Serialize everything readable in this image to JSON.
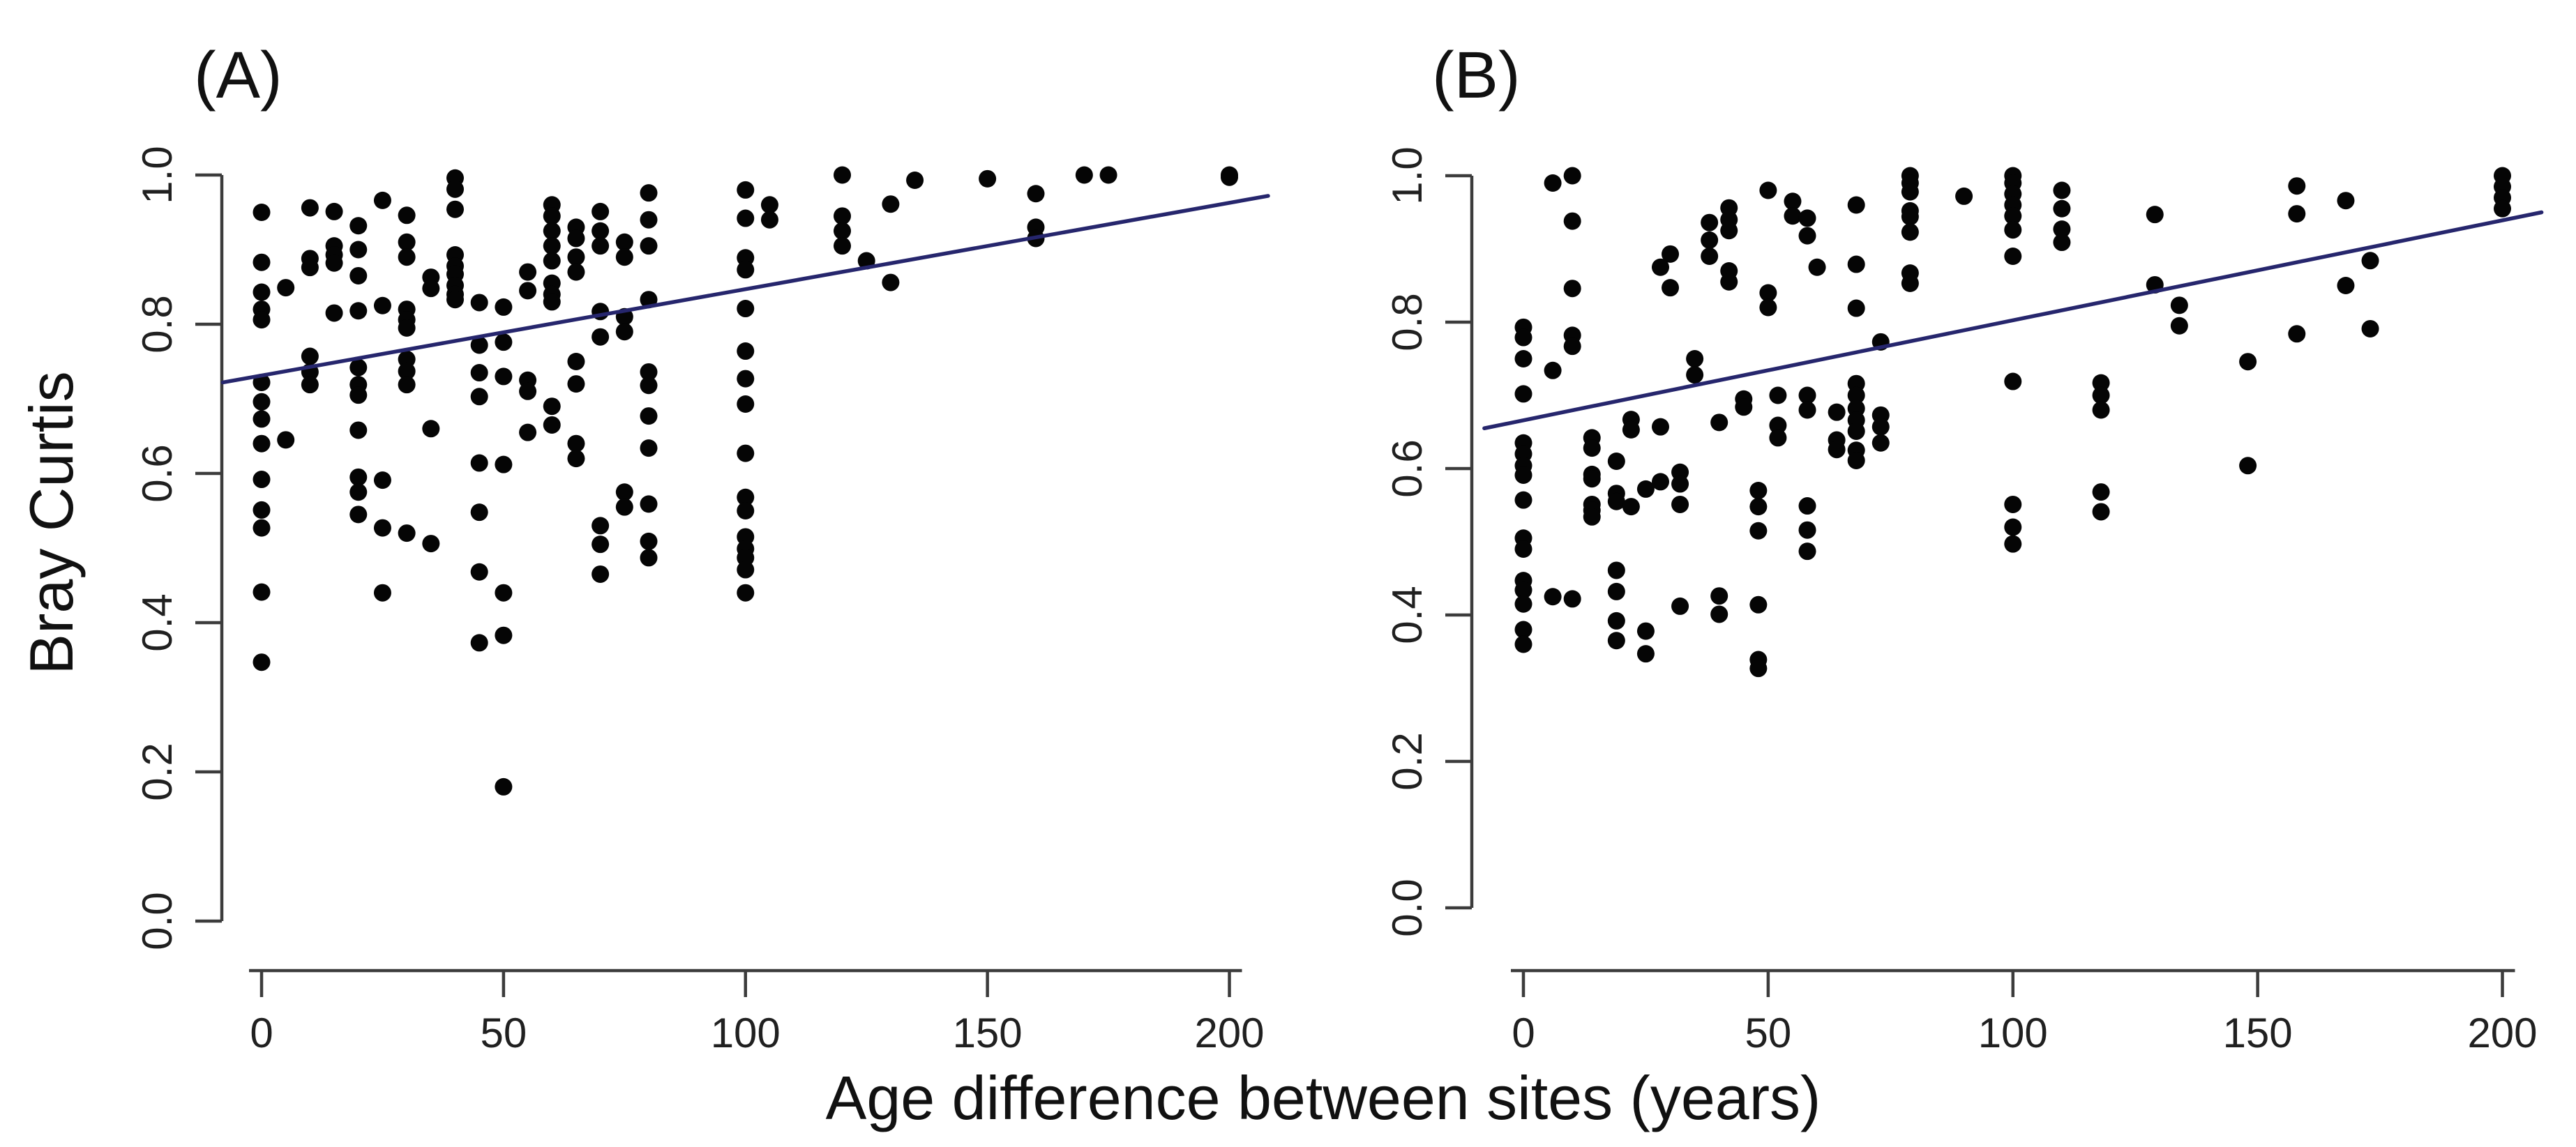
{
  "figure": {
    "x_axis_title": "Age difference between sites (years)",
    "y_axis_title": "Bray Curtis",
    "background_color": "#ffffff",
    "point_color": "#050505",
    "regression_line_color": "#26266d"
  },
  "chart_data": [
    {
      "type": "scatter",
      "panel_label": "(A)",
      "xlabel": "Age difference between sites (years)",
      "ylabel": "Bray Curtis",
      "xlim": [
        -8,
        208
      ],
      "ylim": [
        0.0,
        1.0
      ],
      "x_ticks": [
        0,
        50,
        100,
        150,
        200
      ],
      "y_tick_labels": [
        "0.0",
        "0.2",
        "0.4",
        "0.6",
        "0.8",
        "1.0"
      ],
      "grid": false,
      "legend": "none",
      "regression_line": {
        "x": [
          -8,
          208
        ],
        "y": [
          0.722,
          0.972
        ],
        "color": "#26266d"
      },
      "points": [
        [
          0,
          0.95
        ],
        [
          0,
          0.883
        ],
        [
          0,
          0.843
        ],
        [
          0,
          0.82
        ],
        [
          0,
          0.806
        ],
        [
          0,
          0.722
        ],
        [
          0,
          0.696
        ],
        [
          0,
          0.673
        ],
        [
          0,
          0.64
        ],
        [
          0,
          0.592
        ],
        [
          0,
          0.551
        ],
        [
          0,
          0.527
        ],
        [
          0,
          0.441
        ],
        [
          0,
          0.347
        ],
        [
          5,
          0.849
        ],
        [
          5,
          0.645
        ],
        [
          10,
          0.956
        ],
        [
          10,
          0.888
        ],
        [
          10,
          0.876
        ],
        [
          10,
          0.757
        ],
        [
          10,
          0.736
        ],
        [
          10,
          0.719
        ],
        [
          15,
          0.951
        ],
        [
          15,
          0.905
        ],
        [
          15,
          0.893
        ],
        [
          15,
          0.882
        ],
        [
          15,
          0.815
        ],
        [
          20,
          0.932
        ],
        [
          20,
          0.9
        ],
        [
          20,
          0.865
        ],
        [
          20,
          0.818
        ],
        [
          20,
          0.742
        ],
        [
          20,
          0.719
        ],
        [
          20,
          0.705
        ],
        [
          20,
          0.658
        ],
        [
          20,
          0.595
        ],
        [
          20,
          0.575
        ],
        [
          20,
          0.545
        ],
        [
          25,
          0.966
        ],
        [
          25,
          0.825
        ],
        [
          25,
          0.591
        ],
        [
          25,
          0.527
        ],
        [
          25,
          0.44
        ],
        [
          30,
          0.946
        ],
        [
          30,
          0.91
        ],
        [
          30,
          0.89
        ],
        [
          30,
          0.82
        ],
        [
          30,
          0.806
        ],
        [
          30,
          0.795
        ],
        [
          30,
          0.753
        ],
        [
          30,
          0.737
        ],
        [
          30,
          0.719
        ],
        [
          30,
          0.52
        ],
        [
          35,
          0.863
        ],
        [
          35,
          0.848
        ],
        [
          35,
          0.66
        ],
        [
          35,
          0.506
        ],
        [
          40,
          0.996
        ],
        [
          40,
          0.981
        ],
        [
          40,
          0.954
        ],
        [
          40,
          0.893
        ],
        [
          40,
          0.878
        ],
        [
          40,
          0.867
        ],
        [
          40,
          0.852
        ],
        [
          40,
          0.84
        ],
        [
          40,
          0.833
        ],
        [
          45,
          0.829
        ],
        [
          45,
          0.772
        ],
        [
          45,
          0.735
        ],
        [
          45,
          0.703
        ],
        [
          45,
          0.614
        ],
        [
          45,
          0.548
        ],
        [
          45,
          0.468
        ],
        [
          45,
          0.373
        ],
        [
          50,
          0.823
        ],
        [
          50,
          0.776
        ],
        [
          50,
          0.73
        ],
        [
          50,
          0.612
        ],
        [
          50,
          0.44
        ],
        [
          50,
          0.383
        ],
        [
          50,
          0.18
        ],
        [
          55,
          0.87
        ],
        [
          55,
          0.845
        ],
        [
          55,
          0.725
        ],
        [
          55,
          0.71
        ],
        [
          55,
          0.655
        ],
        [
          60,
          0.96
        ],
        [
          60,
          0.945
        ],
        [
          60,
          0.925
        ],
        [
          60,
          0.905
        ],
        [
          60,
          0.885
        ],
        [
          60,
          0.855
        ],
        [
          60,
          0.84
        ],
        [
          60,
          0.83
        ],
        [
          60,
          0.69
        ],
        [
          60,
          0.665
        ],
        [
          65,
          0.93
        ],
        [
          65,
          0.915
        ],
        [
          65,
          0.89
        ],
        [
          65,
          0.87
        ],
        [
          65,
          0.75
        ],
        [
          65,
          0.72
        ],
        [
          65,
          0.64
        ],
        [
          65,
          0.62
        ],
        [
          70,
          0.951
        ],
        [
          70,
          0.925
        ],
        [
          70,
          0.905
        ],
        [
          70,
          0.817
        ],
        [
          70,
          0.783
        ],
        [
          70,
          0.53
        ],
        [
          70,
          0.505
        ],
        [
          70,
          0.465
        ],
        [
          75,
          0.91
        ],
        [
          75,
          0.89
        ],
        [
          75,
          0.81
        ],
        [
          75,
          0.79
        ],
        [
          75,
          0.575
        ],
        [
          75,
          0.555
        ],
        [
          80,
          0.976
        ],
        [
          80,
          0.94
        ],
        [
          80,
          0.905
        ],
        [
          80,
          0.833
        ],
        [
          80,
          0.736
        ],
        [
          80,
          0.718
        ],
        [
          80,
          0.677
        ],
        [
          80,
          0.634
        ],
        [
          80,
          0.559
        ],
        [
          80,
          0.509
        ],
        [
          80,
          0.487
        ],
        [
          100,
          0.98
        ],
        [
          100,
          0.942
        ],
        [
          100,
          0.889
        ],
        [
          100,
          0.873
        ],
        [
          100,
          0.821
        ],
        [
          100,
          0.764
        ],
        [
          100,
          0.727
        ],
        [
          100,
          0.693
        ],
        [
          100,
          0.627
        ],
        [
          100,
          0.568
        ],
        [
          100,
          0.55
        ],
        [
          100,
          0.515
        ],
        [
          100,
          0.499
        ],
        [
          100,
          0.487
        ],
        [
          100,
          0.471
        ],
        [
          100,
          0.44
        ],
        [
          105,
          0.96
        ],
        [
          105,
          0.94
        ],
        [
          120,
          1.0
        ],
        [
          120,
          0.945
        ],
        [
          120,
          0.925
        ],
        [
          120,
          0.905
        ],
        [
          125,
          0.885
        ],
        [
          130,
          0.961
        ],
        [
          130,
          0.856
        ],
        [
          135,
          0.993
        ],
        [
          150,
          0.995
        ],
        [
          160,
          0.975
        ],
        [
          160,
          0.93
        ],
        [
          160,
          0.915
        ],
        [
          170,
          1.0
        ],
        [
          175,
          1.0
        ],
        [
          200,
          1.0
        ],
        [
          200,
          0.997
        ]
      ]
    },
    {
      "type": "scatter",
      "panel_label": "(B)",
      "xlabel": "Age difference between sites (years)",
      "ylabel": "",
      "xlim": [
        -8,
        208
      ],
      "ylim": [
        0.0,
        1.0
      ],
      "x_ticks": [
        0,
        50,
        100,
        150,
        200
      ],
      "y_tick_labels": [
        "0.0",
        "0.2",
        "0.4",
        "0.6",
        "0.8",
        "1.0"
      ],
      "grid": false,
      "legend": "none",
      "regression_line": {
        "x": [
          -8,
          208
        ],
        "y": [
          0.655,
          0.95
        ],
        "color": "#26266d"
      },
      "points": [
        [
          0,
          0.793
        ],
        [
          0,
          0.779
        ],
        [
          0,
          0.75
        ],
        [
          0,
          0.702
        ],
        [
          0,
          0.635
        ],
        [
          0,
          0.62
        ],
        [
          0,
          0.604
        ],
        [
          0,
          0.591
        ],
        [
          0,
          0.557
        ],
        [
          0,
          0.505
        ],
        [
          0,
          0.49
        ],
        [
          0,
          0.447
        ],
        [
          0,
          0.434
        ],
        [
          0,
          0.415
        ],
        [
          0,
          0.38
        ],
        [
          0,
          0.36
        ],
        [
          6,
          0.99
        ],
        [
          6,
          0.734
        ],
        [
          6,
          0.425
        ],
        [
          10,
          1.0
        ],
        [
          10,
          0.938
        ],
        [
          10,
          0.846
        ],
        [
          10,
          0.782
        ],
        [
          10,
          0.767
        ],
        [
          10,
          0.422
        ],
        [
          14,
          0.642
        ],
        [
          14,
          0.628
        ],
        [
          14,
          0.592
        ],
        [
          14,
          0.586
        ],
        [
          14,
          0.551
        ],
        [
          14,
          0.543
        ],
        [
          14,
          0.534
        ],
        [
          19,
          0.61
        ],
        [
          19,
          0.566
        ],
        [
          19,
          0.555
        ],
        [
          19,
          0.461
        ],
        [
          19,
          0.432
        ],
        [
          19,
          0.392
        ],
        [
          19,
          0.365
        ],
        [
          22,
          0.667
        ],
        [
          22,
          0.653
        ],
        [
          22,
          0.548
        ],
        [
          25,
          0.572
        ],
        [
          25,
          0.378
        ],
        [
          25,
          0.347
        ],
        [
          28,
          0.875
        ],
        [
          28,
          0.657
        ],
        [
          28,
          0.582
        ],
        [
          30,
          0.893
        ],
        [
          30,
          0.847
        ],
        [
          32,
          0.595
        ],
        [
          32,
          0.579
        ],
        [
          32,
          0.551
        ],
        [
          32,
          0.412
        ],
        [
          35,
          0.75
        ],
        [
          35,
          0.728
        ],
        [
          38,
          0.936
        ],
        [
          38,
          0.912
        ],
        [
          38,
          0.89
        ],
        [
          40,
          0.663
        ],
        [
          40,
          0.426
        ],
        [
          40,
          0.401
        ],
        [
          42,
          0.956
        ],
        [
          42,
          0.94
        ],
        [
          42,
          0.925
        ],
        [
          42,
          0.87
        ],
        [
          42,
          0.855
        ],
        [
          45,
          0.695
        ],
        [
          45,
          0.684
        ],
        [
          48,
          0.57
        ],
        [
          48,
          0.548
        ],
        [
          48,
          0.515
        ],
        [
          48,
          0.414
        ],
        [
          48,
          0.339
        ],
        [
          48,
          0.327
        ],
        [
          50,
          0.98
        ],
        [
          50,
          0.84
        ],
        [
          50,
          0.82
        ],
        [
          52,
          0.7
        ],
        [
          52,
          0.659
        ],
        [
          52,
          0.642
        ],
        [
          55,
          0.965
        ],
        [
          55,
          0.945
        ],
        [
          58,
          0.942
        ],
        [
          58,
          0.918
        ],
        [
          58,
          0.7
        ],
        [
          58,
          0.68
        ],
        [
          58,
          0.549
        ],
        [
          58,
          0.516
        ],
        [
          58,
          0.487
        ],
        [
          60,
          0.875
        ],
        [
          64,
          0.677
        ],
        [
          64,
          0.639
        ],
        [
          64,
          0.626
        ],
        [
          68,
          0.96
        ],
        [
          68,
          0.879
        ],
        [
          68,
          0.819
        ],
        [
          68,
          0.716
        ],
        [
          68,
          0.7
        ],
        [
          68,
          0.682
        ],
        [
          68,
          0.666
        ],
        [
          68,
          0.651
        ],
        [
          68,
          0.625
        ],
        [
          68,
          0.611
        ],
        [
          73,
          0.773
        ],
        [
          73,
          0.673
        ],
        [
          73,
          0.657
        ],
        [
          73,
          0.635
        ],
        [
          79,
          1.0
        ],
        [
          79,
          0.99
        ],
        [
          79,
          0.978
        ],
        [
          79,
          0.952
        ],
        [
          79,
          0.944
        ],
        [
          79,
          0.923
        ],
        [
          79,
          0.867
        ],
        [
          79,
          0.853
        ],
        [
          90,
          0.972
        ],
        [
          100,
          1.0
        ],
        [
          100,
          0.99
        ],
        [
          100,
          0.975
        ],
        [
          100,
          0.96
        ],
        [
          100,
          0.945
        ],
        [
          100,
          0.926
        ],
        [
          100,
          0.89
        ],
        [
          100,
          0.719
        ],
        [
          100,
          0.551
        ],
        [
          100,
          0.52
        ],
        [
          100,
          0.497
        ],
        [
          110,
          0.98
        ],
        [
          110,
          0.955
        ],
        [
          110,
          0.927
        ],
        [
          110,
          0.909
        ],
        [
          118,
          0.717
        ],
        [
          118,
          0.7
        ],
        [
          118,
          0.68
        ],
        [
          118,
          0.568
        ],
        [
          118,
          0.541
        ],
        [
          129,
          0.947
        ],
        [
          129,
          0.851
        ],
        [
          134,
          0.823
        ],
        [
          134,
          0.795
        ],
        [
          148,
          0.746
        ],
        [
          148,
          0.604
        ],
        [
          158,
          0.986
        ],
        [
          158,
          0.948
        ],
        [
          158,
          0.784
        ],
        [
          168,
          0.966
        ],
        [
          168,
          0.85
        ],
        [
          173,
          0.884
        ],
        [
          173,
          0.791
        ],
        [
          200,
          1.0
        ],
        [
          200,
          0.985
        ],
        [
          200,
          0.97
        ],
        [
          200,
          0.955
        ]
      ]
    }
  ]
}
